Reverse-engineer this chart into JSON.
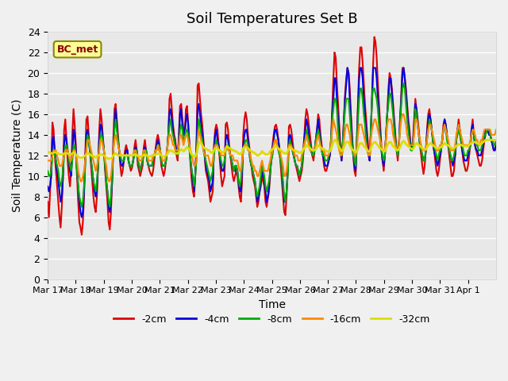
{
  "title": "Soil Temperatures Set B",
  "xlabel": "Time",
  "ylabel": "Soil Temperature (C)",
  "ylim": [
    0,
    24
  ],
  "yticks": [
    0,
    2,
    4,
    6,
    8,
    10,
    12,
    14,
    16,
    18,
    20,
    22,
    24
  ],
  "xlabels": [
    "Mar 17",
    "Mar 18",
    "Mar 19",
    "Mar 20",
    "Mar 21",
    "Mar 22",
    "Mar 23",
    "Mar 24",
    "Mar 25",
    "Mar 26",
    "Mar 27",
    "Mar 28",
    "Mar 29",
    "Mar 30",
    "Mar 31",
    "Apr 1"
  ],
  "legend_label": "BC_met",
  "series_labels": [
    "-2cm",
    "-4cm",
    "-8cm",
    "-16cm",
    "-32cm"
  ],
  "series_colors": [
    "#dd0000",
    "#0000dd",
    "#00aa00",
    "#ff8800",
    "#dddd00"
  ],
  "background_color": "#e8e8e8",
  "grid_color": "#ffffff",
  "title_fontsize": 13,
  "axis_fontsize": 10,
  "tick_fontsize": 9,
  "cm2_data": [
    7.5,
    6.0,
    8.5,
    11.0,
    15.2,
    14.5,
    12.0,
    10.5,
    9.0,
    7.5,
    6.0,
    5.0,
    7.0,
    10.0,
    14.5,
    15.5,
    13.5,
    11.5,
    10.0,
    9.0,
    10.5,
    14.0,
    16.5,
    15.0,
    13.0,
    10.0,
    7.5,
    5.5,
    5.0,
    4.3,
    5.5,
    8.0,
    12.0,
    15.5,
    15.8,
    14.0,
    12.5,
    11.0,
    9.5,
    8.0,
    7.0,
    6.5,
    8.0,
    11.0,
    14.5,
    16.5,
    15.5,
    14.0,
    12.5,
    10.5,
    9.0,
    7.5,
    5.5,
    4.8,
    6.5,
    9.5,
    13.5,
    16.5,
    17.0,
    15.5,
    14.0,
    12.5,
    11.0,
    10.0,
    10.5,
    11.5,
    12.5,
    13.0,
    12.5,
    11.5,
    11.0,
    10.5,
    10.8,
    11.5,
    12.8,
    13.5,
    12.5,
    11.0,
    10.5,
    10.0,
    10.5,
    11.0,
    12.8,
    13.5,
    12.5,
    11.5,
    11.0,
    10.5,
    10.2,
    10.0,
    10.5,
    11.5,
    12.5,
    13.5,
    14.0,
    13.5,
    12.5,
    11.0,
    10.5,
    10.0,
    10.5,
    11.5,
    12.5,
    14.0,
    17.5,
    18.0,
    16.5,
    15.0,
    14.0,
    13.5,
    12.0,
    11.5,
    14.0,
    16.8,
    17.0,
    15.5,
    14.5,
    14.0,
    16.5,
    16.8,
    15.0,
    13.0,
    11.0,
    9.5,
    8.5,
    8.0,
    10.0,
    13.0,
    18.8,
    19.0,
    17.5,
    16.0,
    15.0,
    13.5,
    12.0,
    10.5,
    10.0,
    9.5,
    8.5,
    7.5,
    8.0,
    8.5,
    13.0,
    14.5,
    15.0,
    14.5,
    13.0,
    11.5,
    10.0,
    9.0,
    9.5,
    10.0,
    15.0,
    15.2,
    14.5,
    13.0,
    12.0,
    11.0,
    10.0,
    9.5,
    10.0,
    10.5,
    10.0,
    9.0,
    8.0,
    7.5,
    9.5,
    14.0,
    15.5,
    16.2,
    15.5,
    14.0,
    13.0,
    12.0,
    11.0,
    10.0,
    9.5,
    9.0,
    8.0,
    7.0,
    7.5,
    8.5,
    9.0,
    10.0,
    9.5,
    9.0,
    7.5,
    7.0,
    7.8,
    8.5,
    10.0,
    12.0,
    13.0,
    14.0,
    14.8,
    15.0,
    14.5,
    13.5,
    12.5,
    11.0,
    9.5,
    8.0,
    6.5,
    6.2,
    8.0,
    10.5,
    14.8,
    15.0,
    14.5,
    13.5,
    12.5,
    11.5,
    11.0,
    10.5,
    10.0,
    9.5,
    10.0,
    10.5,
    11.5,
    13.5,
    15.5,
    16.5,
    16.0,
    15.0,
    14.0,
    13.0,
    12.0,
    11.5,
    12.5,
    13.5,
    14.5,
    16.0,
    15.5,
    14.0,
    13.0,
    12.0,
    11.0,
    10.5,
    10.5,
    11.0,
    11.5,
    12.0,
    13.5,
    16.5,
    19.5,
    22.0,
    21.5,
    19.0,
    17.0,
    15.0,
    13.0,
    11.5,
    13.0,
    15.5,
    18.0,
    19.5,
    20.5,
    20.0,
    18.5,
    16.0,
    14.0,
    12.0,
    10.5,
    10.0,
    13.5,
    17.0,
    20.5,
    22.5,
    22.5,
    21.0,
    19.0,
    17.0,
    15.5,
    14.0,
    12.5,
    11.5,
    14.0,
    17.5,
    21.0,
    23.5,
    23.0,
    21.5,
    19.0,
    17.0,
    15.0,
    13.0,
    11.5,
    10.5,
    12.0,
    14.0,
    16.0,
    18.5,
    20.0,
    19.5,
    18.5,
    17.0,
    15.5,
    14.0,
    12.5,
    11.5,
    13.0,
    15.5,
    18.0,
    20.5,
    20.5,
    19.5,
    18.5,
    17.0,
    15.5,
    14.5,
    13.0,
    12.5,
    13.5,
    15.5,
    17.5,
    16.5,
    15.5,
    14.5,
    13.0,
    12.0,
    11.0,
    10.2,
    11.0,
    12.5,
    14.5,
    16.0,
    16.5,
    15.5,
    14.5,
    13.5,
    12.5,
    11.5,
    10.5,
    10.0,
    10.5,
    11.5,
    12.5,
    13.5,
    15.0,
    15.5,
    15.0,
    14.0,
    13.0,
    12.0,
    11.0,
    10.0,
    10.0,
    10.5,
    12.0,
    13.5,
    14.5,
    15.5,
    14.5,
    13.5,
    12.5,
    11.5,
    11.0,
    10.5,
    10.5,
    11.0,
    12.0,
    13.0,
    14.5,
    15.5,
    14.0,
    13.0,
    12.5,
    12.0,
    11.5,
    11.0,
    11.0,
    11.5,
    12.5,
    13.5,
    14.0,
    14.5,
    14.5,
    14.0,
    14.0,
    13.5,
    13.0,
    12.5,
    12.5,
    13.0
  ],
  "cm4_data": [
    9.0,
    8.5,
    9.0,
    10.0,
    13.5,
    13.8,
    12.5,
    11.5,
    10.5,
    9.5,
    8.5,
    7.5,
    8.0,
    10.0,
    13.0,
    14.0,
    13.5,
    12.5,
    11.5,
    10.5,
    10.0,
    12.0,
    14.5,
    14.0,
    12.5,
    10.5,
    9.0,
    7.5,
    6.5,
    6.0,
    6.5,
    8.5,
    11.5,
    14.0,
    14.5,
    13.5,
    12.5,
    11.5,
    10.5,
    9.5,
    8.5,
    8.0,
    9.0,
    11.0,
    13.5,
    15.0,
    14.8,
    13.5,
    12.5,
    11.0,
    9.5,
    8.5,
    7.0,
    6.5,
    7.5,
    9.5,
    12.5,
    15.0,
    16.5,
    15.0,
    13.5,
    12.5,
    11.5,
    11.0,
    11.0,
    11.5,
    12.0,
    12.5,
    12.5,
    11.5,
    11.0,
    11.0,
    11.0,
    11.5,
    12.5,
    12.8,
    12.5,
    11.5,
    11.0,
    10.5,
    11.0,
    11.5,
    12.5,
    12.8,
    12.5,
    11.5,
    11.0,
    11.0,
    11.0,
    11.0,
    11.5,
    12.0,
    12.5,
    13.0,
    13.5,
    13.0,
    12.5,
    11.5,
    11.0,
    11.0,
    11.0,
    11.5,
    12.5,
    14.0,
    16.3,
    16.5,
    15.5,
    14.5,
    13.5,
    13.0,
    12.5,
    12.0,
    13.5,
    16.0,
    16.5,
    15.0,
    14.0,
    14.0,
    15.5,
    16.0,
    15.0,
    13.0,
    11.5,
    10.5,
    9.5,
    8.5,
    10.0,
    12.5,
    16.5,
    17.0,
    16.0,
    15.0,
    14.0,
    13.0,
    12.0,
    11.0,
    10.5,
    10.0,
    9.5,
    8.5,
    9.0,
    9.5,
    12.5,
    14.0,
    14.5,
    13.5,
    13.0,
    12.0,
    11.0,
    10.5,
    10.5,
    11.0,
    13.5,
    14.0,
    13.5,
    12.5,
    12.0,
    11.5,
    11.0,
    10.5,
    10.5,
    11.0,
    10.5,
    9.5,
    8.5,
    8.5,
    10.5,
    13.0,
    14.0,
    14.5,
    14.5,
    13.5,
    12.5,
    11.5,
    11.0,
    10.5,
    10.0,
    9.5,
    8.5,
    7.5,
    8.0,
    8.5,
    9.5,
    10.5,
    10.0,
    9.5,
    8.5,
    7.5,
    8.0,
    9.0,
    10.5,
    11.5,
    12.5,
    13.5,
    14.5,
    14.5,
    14.0,
    13.5,
    12.5,
    11.5,
    10.5,
    9.0,
    7.5,
    7.5,
    8.5,
    10.5,
    13.8,
    14.0,
    13.5,
    12.5,
    12.0,
    11.5,
    11.0,
    11.0,
    10.5,
    10.0,
    10.5,
    11.0,
    12.0,
    13.5,
    14.5,
    15.5,
    15.0,
    14.0,
    13.0,
    12.5,
    12.0,
    12.0,
    12.5,
    13.5,
    14.5,
    15.5,
    14.5,
    13.5,
    12.5,
    12.0,
    11.5,
    11.0,
    11.0,
    11.0,
    11.5,
    12.0,
    13.0,
    16.0,
    17.5,
    19.5,
    19.5,
    17.5,
    15.5,
    14.0,
    12.5,
    11.5,
    13.0,
    15.5,
    17.5,
    19.0,
    20.5,
    20.0,
    17.5,
    15.5,
    13.5,
    12.0,
    11.0,
    10.5,
    13.0,
    16.5,
    19.5,
    20.5,
    20.5,
    19.5,
    17.5,
    16.0,
    14.5,
    13.0,
    12.0,
    11.5,
    14.5,
    17.5,
    20.5,
    20.5,
    20.5,
    19.5,
    17.5,
    15.5,
    14.0,
    12.5,
    11.5,
    11.0,
    12.0,
    14.0,
    16.0,
    17.5,
    19.5,
    19.5,
    18.0,
    16.5,
    15.0,
    13.5,
    12.5,
    12.0,
    13.0,
    15.5,
    17.5,
    20.0,
    20.5,
    19.5,
    18.0,
    16.5,
    15.0,
    14.0,
    13.0,
    12.5,
    13.0,
    15.0,
    17.0,
    16.5,
    15.0,
    14.0,
    13.0,
    12.5,
    12.0,
    11.5,
    11.5,
    12.5,
    14.0,
    15.5,
    16.0,
    15.5,
    14.5,
    13.5,
    12.5,
    12.0,
    11.5,
    11.0,
    11.5,
    12.0,
    12.5,
    13.5,
    14.5,
    15.5,
    15.0,
    14.0,
    13.0,
    12.5,
    12.0,
    11.5,
    11.0,
    11.5,
    12.0,
    13.5,
    14.5,
    15.0,
    14.5,
    13.5,
    12.5,
    12.0,
    11.5,
    11.5,
    11.5,
    12.0,
    12.5,
    13.0,
    14.5,
    15.0,
    14.0,
    13.0,
    12.5,
    12.5,
    12.0,
    12.0,
    12.0,
    12.5,
    13.0,
    14.0,
    14.5,
    14.5,
    14.5,
    14.0,
    14.0,
    13.5,
    13.0,
    12.5,
    12.5,
    13.0
  ],
  "cm8_data": [
    10.5,
    10.0,
    10.0,
    10.5,
    12.0,
    12.5,
    12.0,
    11.5,
    11.0,
    10.5,
    9.5,
    9.0,
    9.5,
    10.5,
    12.0,
    13.0,
    13.0,
    12.5,
    11.5,
    11.0,
    10.5,
    11.5,
    13.0,
    13.0,
    12.0,
    10.5,
    9.0,
    8.0,
    7.5,
    7.0,
    7.5,
    9.0,
    11.0,
    13.0,
    14.0,
    13.5,
    12.5,
    11.5,
    10.5,
    9.5,
    9.0,
    8.5,
    9.5,
    11.0,
    12.5,
    14.0,
    14.0,
    13.5,
    12.5,
    11.0,
    9.5,
    8.5,
    7.5,
    7.0,
    8.0,
    10.0,
    12.5,
    14.5,
    15.5,
    14.5,
    13.5,
    12.5,
    12.0,
    11.5,
    11.5,
    11.5,
    12.0,
    12.0,
    12.0,
    11.5,
    11.0,
    11.0,
    11.0,
    11.5,
    12.0,
    12.5,
    12.5,
    11.5,
    11.0,
    10.5,
    11.0,
    11.5,
    12.0,
    12.5,
    12.5,
    11.5,
    11.0,
    11.0,
    11.0,
    11.0,
    11.5,
    12.0,
    12.5,
    12.5,
    13.0,
    13.0,
    12.5,
    11.5,
    11.0,
    11.0,
    11.0,
    11.5,
    12.5,
    14.0,
    15.0,
    15.5,
    14.5,
    14.0,
    13.5,
    12.5,
    12.5,
    12.0,
    13.0,
    14.5,
    15.0,
    14.5,
    13.5,
    13.5,
    14.5,
    14.5,
    14.0,
    12.5,
    11.5,
    10.5,
    10.0,
    9.0,
    10.0,
    11.5,
    14.0,
    15.5,
    15.0,
    14.0,
    13.5,
    12.5,
    12.0,
    11.5,
    11.0,
    10.5,
    10.0,
    9.5,
    10.0,
    10.5,
    12.0,
    13.0,
    13.5,
    13.0,
    12.5,
    12.0,
    11.5,
    11.0,
    11.0,
    11.5,
    12.5,
    13.0,
    13.0,
    12.5,
    12.0,
    11.5,
    11.0,
    10.5,
    11.0,
    11.0,
    10.5,
    9.5,
    9.0,
    9.5,
    11.0,
    12.5,
    13.0,
    13.5,
    13.5,
    13.0,
    12.5,
    11.5,
    11.0,
    10.5,
    10.0,
    9.5,
    8.5,
    8.0,
    8.5,
    9.0,
    10.0,
    11.0,
    10.5,
    10.0,
    9.0,
    8.5,
    9.0,
    9.5,
    10.5,
    11.5,
    12.0,
    13.0,
    13.5,
    13.5,
    13.0,
    12.5,
    12.0,
    11.5,
    10.5,
    9.5,
    8.0,
    7.5,
    8.5,
    10.0,
    13.0,
    13.5,
    13.0,
    12.5,
    12.0,
    11.5,
    11.0,
    11.0,
    10.5,
    10.0,
    10.5,
    11.0,
    12.0,
    13.0,
    13.5,
    14.5,
    14.0,
    13.5,
    13.0,
    12.5,
    12.0,
    12.0,
    12.5,
    13.5,
    14.0,
    14.5,
    14.0,
    13.0,
    12.5,
    12.0,
    12.0,
    11.5,
    11.5,
    11.5,
    12.0,
    12.5,
    13.5,
    15.5,
    16.5,
    17.5,
    17.5,
    16.5,
    14.5,
    13.5,
    12.5,
    12.0,
    13.0,
    15.0,
    16.5,
    17.5,
    17.5,
    17.5,
    16.0,
    14.5,
    13.0,
    12.0,
    11.5,
    11.0,
    13.0,
    15.5,
    17.5,
    18.5,
    18.5,
    17.5,
    16.0,
    15.0,
    13.5,
    12.5,
    12.0,
    12.0,
    14.5,
    17.5,
    18.5,
    18.5,
    18.0,
    17.5,
    16.5,
    15.0,
    13.5,
    12.5,
    12.0,
    11.5,
    12.0,
    14.0,
    16.0,
    17.0,
    18.0,
    18.0,
    17.0,
    16.0,
    14.5,
    13.5,
    12.5,
    12.0,
    13.0,
    15.0,
    17.0,
    18.5,
    19.0,
    18.5,
    17.0,
    15.5,
    14.5,
    13.5,
    12.5,
    12.5,
    13.0,
    14.5,
    16.5,
    16.0,
    15.0,
    14.0,
    13.0,
    12.5,
    12.0,
    11.5,
    11.5,
    12.5,
    13.5,
    14.5,
    15.5,
    15.0,
    14.5,
    13.5,
    13.0,
    12.5,
    12.0,
    11.5,
    12.0,
    12.5,
    12.5,
    13.5,
    14.5,
    15.0,
    14.5,
    13.5,
    13.0,
    12.5,
    12.0,
    11.5,
    11.5,
    12.0,
    12.5,
    13.5,
    14.0,
    14.5,
    14.0,
    13.5,
    13.0,
    12.5,
    12.0,
    12.0,
    12.0,
    12.5,
    12.5,
    13.0,
    14.0,
    14.5,
    14.0,
    13.5,
    13.0,
    13.0,
    12.5,
    12.5,
    12.5,
    13.0,
    13.5,
    14.0,
    14.0,
    14.5,
    14.5,
    14.5,
    14.0,
    13.5,
    13.5,
    13.0,
    13.0,
    13.5
  ],
  "cm16_data": [
    11.5,
    11.5,
    11.5,
    11.5,
    12.0,
    12.5,
    12.5,
    12.5,
    12.0,
    11.5,
    11.0,
    11.0,
    11.0,
    11.5,
    12.0,
    12.5,
    12.5,
    12.5,
    12.0,
    11.5,
    11.5,
    12.0,
    12.5,
    12.5,
    12.0,
    11.5,
    10.5,
    10.0,
    9.5,
    9.5,
    10.0,
    10.5,
    11.5,
    12.5,
    13.5,
    13.5,
    13.0,
    12.5,
    12.0,
    11.5,
    11.0,
    10.5,
    11.0,
    11.5,
    12.5,
    13.5,
    13.5,
    13.0,
    12.5,
    11.5,
    11.0,
    10.0,
    9.5,
    9.5,
    10.0,
    11.0,
    12.5,
    13.5,
    14.0,
    13.5,
    13.0,
    12.5,
    12.0,
    12.0,
    12.0,
    12.0,
    12.0,
    12.0,
    12.0,
    12.0,
    12.0,
    12.0,
    12.0,
    12.0,
    12.5,
    12.5,
    12.0,
    12.0,
    11.5,
    11.5,
    11.5,
    12.0,
    12.5,
    12.5,
    12.0,
    12.0,
    11.5,
    11.5,
    11.5,
    11.5,
    12.0,
    12.0,
    12.5,
    12.5,
    13.0,
    12.5,
    12.5,
    12.0,
    11.5,
    11.5,
    11.5,
    12.0,
    12.5,
    13.5,
    14.0,
    14.0,
    13.5,
    13.0,
    13.0,
    12.5,
    12.5,
    12.5,
    13.0,
    14.0,
    14.0,
    13.5,
    13.0,
    13.5,
    14.0,
    14.0,
    13.5,
    13.0,
    12.5,
    12.0,
    11.5,
    11.0,
    11.0,
    11.5,
    13.5,
    14.5,
    14.0,
    13.5,
    13.0,
    12.5,
    12.0,
    12.0,
    12.0,
    12.0,
    11.5,
    11.0,
    11.0,
    11.5,
    12.5,
    13.0,
    13.0,
    13.0,
    12.5,
    12.5,
    12.0,
    12.0,
    12.0,
    12.0,
    12.5,
    13.0,
    12.5,
    12.5,
    12.0,
    12.0,
    12.0,
    11.5,
    11.5,
    11.5,
    11.5,
    11.0,
    10.5,
    10.5,
    11.5,
    12.5,
    13.0,
    13.0,
    13.0,
    12.5,
    12.5,
    12.0,
    11.5,
    11.0,
    11.0,
    10.5,
    10.5,
    10.0,
    10.0,
    10.5,
    11.0,
    11.5,
    11.0,
    10.5,
    10.5,
    10.5,
    10.5,
    11.0,
    11.5,
    12.0,
    12.5,
    13.0,
    13.5,
    13.5,
    13.0,
    12.5,
    12.5,
    12.0,
    11.5,
    11.0,
    10.0,
    10.0,
    10.5,
    11.5,
    13.0,
    13.0,
    13.0,
    12.5,
    12.5,
    12.0,
    12.0,
    12.0,
    11.5,
    11.5,
    11.5,
    12.0,
    12.5,
    13.0,
    13.5,
    14.0,
    13.5,
    13.0,
    12.5,
    12.5,
    12.5,
    12.5,
    12.5,
    13.0,
    13.5,
    14.0,
    13.5,
    13.0,
    12.5,
    12.5,
    12.5,
    12.0,
    12.0,
    12.0,
    12.0,
    12.5,
    13.0,
    14.5,
    15.5,
    15.0,
    14.5,
    14.0,
    13.0,
    12.5,
    12.0,
    12.0,
    12.5,
    13.5,
    14.5,
    15.0,
    15.0,
    14.5,
    14.0,
    13.0,
    12.5,
    12.5,
    12.0,
    12.0,
    12.5,
    14.0,
    15.0,
    15.0,
    15.0,
    14.5,
    14.0,
    13.5,
    13.0,
    12.5,
    12.0,
    12.0,
    13.5,
    14.5,
    15.0,
    15.5,
    15.5,
    15.0,
    14.5,
    14.0,
    13.5,
    13.0,
    12.5,
    12.5,
    12.5,
    13.5,
    15.0,
    15.5,
    15.5,
    15.5,
    15.0,
    14.0,
    13.5,
    13.0,
    12.5,
    12.5,
    13.0,
    14.5,
    15.5,
    16.0,
    16.0,
    15.5,
    15.0,
    14.0,
    13.5,
    13.0,
    13.0,
    13.0,
    13.0,
    14.0,
    15.5,
    15.5,
    15.0,
    14.0,
    13.5,
    13.0,
    12.5,
    12.5,
    12.5,
    12.5,
    13.5,
    14.5,
    15.0,
    15.0,
    14.5,
    14.0,
    13.5,
    13.0,
    12.5,
    12.5,
    12.5,
    13.0,
    13.0,
    13.5,
    14.5,
    15.0,
    14.5,
    14.0,
    13.5,
    13.0,
    12.5,
    12.5,
    12.5,
    12.5,
    13.0,
    14.0,
    14.5,
    15.0,
    14.5,
    14.0,
    13.5,
    13.0,
    13.0,
    13.0,
    13.0,
    13.0,
    13.0,
    13.5,
    14.0,
    14.5,
    14.5,
    14.0,
    13.5,
    13.5,
    13.0,
    13.0,
    13.5,
    13.5,
    14.0,
    14.5,
    14.5,
    14.5,
    14.5,
    14.5,
    14.5,
    14.0,
    14.0,
    14.0,
    14.0,
    14.5
  ],
  "cm32_data": [
    12.3,
    12.3,
    12.3,
    12.2,
    12.2,
    12.3,
    12.3,
    12.3,
    12.2,
    12.2,
    12.1,
    12.1,
    12.1,
    12.1,
    12.2,
    12.2,
    12.2,
    12.2,
    12.1,
    12.1,
    12.1,
    12.2,
    12.3,
    12.3,
    12.0,
    12.0,
    11.9,
    11.8,
    11.8,
    11.8,
    11.8,
    11.9,
    12.0,
    12.1,
    12.2,
    12.2,
    12.1,
    12.0,
    12.0,
    11.9,
    11.9,
    11.8,
    11.9,
    12.0,
    12.0,
    12.1,
    12.1,
    12.0,
    12.0,
    11.9,
    11.8,
    11.7,
    11.7,
    11.7,
    11.7,
    11.8,
    12.0,
    12.1,
    12.2,
    12.1,
    12.0,
    12.0,
    12.0,
    12.0,
    12.0,
    12.0,
    12.0,
    12.0,
    12.0,
    12.0,
    12.0,
    12.0,
    12.0,
    12.0,
    12.1,
    12.1,
    12.0,
    12.0,
    11.9,
    11.9,
    11.9,
    12.0,
    12.0,
    12.1,
    12.0,
    12.0,
    11.9,
    11.9,
    11.9,
    12.0,
    12.0,
    12.0,
    12.1,
    12.1,
    12.2,
    12.2,
    12.1,
    12.0,
    11.9,
    11.9,
    11.9,
    12.0,
    12.1,
    12.3,
    12.5,
    12.5,
    12.4,
    12.4,
    12.3,
    12.2,
    12.2,
    12.2,
    12.3,
    12.5,
    12.6,
    12.5,
    12.4,
    12.5,
    12.7,
    12.8,
    12.7,
    12.6,
    12.3,
    12.1,
    12.0,
    11.9,
    11.9,
    12.1,
    12.7,
    13.2,
    13.3,
    13.2,
    13.0,
    12.8,
    12.7,
    12.6,
    12.6,
    12.5,
    12.5,
    12.3,
    12.3,
    12.3,
    12.5,
    12.7,
    12.7,
    12.7,
    12.5,
    12.5,
    12.4,
    12.3,
    12.3,
    12.4,
    12.7,
    12.9,
    12.8,
    12.7,
    12.7,
    12.6,
    12.5,
    12.5,
    12.4,
    12.4,
    12.3,
    12.2,
    12.1,
    12.2,
    12.3,
    12.7,
    12.8,
    12.8,
    12.8,
    12.7,
    12.6,
    12.5,
    12.4,
    12.3,
    12.3,
    12.2,
    12.1,
    12.0,
    12.0,
    12.1,
    12.2,
    12.4,
    12.3,
    12.2,
    12.1,
    12.1,
    12.1,
    12.2,
    12.4,
    12.5,
    12.6,
    12.7,
    12.9,
    12.9,
    12.8,
    12.7,
    12.6,
    12.5,
    12.4,
    12.3,
    12.2,
    12.2,
    12.2,
    12.4,
    12.7,
    12.8,
    12.7,
    12.6,
    12.5,
    12.5,
    12.4,
    12.4,
    12.3,
    12.3,
    12.3,
    12.3,
    12.5,
    12.7,
    12.8,
    13.0,
    12.9,
    12.8,
    12.7,
    12.6,
    12.5,
    12.5,
    12.5,
    12.6,
    12.8,
    13.0,
    12.9,
    12.8,
    12.7,
    12.6,
    12.6,
    12.5,
    12.4,
    12.4,
    12.3,
    12.4,
    12.6,
    13.0,
    13.3,
    13.5,
    13.5,
    13.3,
    13.0,
    12.8,
    12.6,
    12.4,
    12.5,
    12.8,
    13.1,
    13.3,
    13.3,
    13.3,
    13.0,
    12.8,
    12.6,
    12.5,
    12.4,
    12.3,
    12.4,
    12.7,
    13.0,
    13.2,
    13.2,
    13.1,
    12.9,
    12.8,
    12.7,
    12.5,
    12.4,
    12.4,
    12.7,
    13.0,
    13.2,
    13.3,
    13.3,
    13.1,
    13.0,
    12.8,
    12.7,
    12.6,
    12.5,
    12.4,
    12.4,
    12.7,
    13.0,
    13.2,
    13.3,
    13.3,
    13.1,
    12.9,
    12.8,
    12.7,
    12.5,
    12.5,
    12.6,
    12.8,
    13.1,
    13.3,
    13.4,
    13.3,
    13.1,
    13.0,
    12.9,
    12.8,
    12.7,
    12.6,
    12.6,
    12.8,
    13.1,
    13.2,
    13.1,
    13.0,
    12.9,
    12.8,
    12.7,
    12.6,
    12.6,
    12.6,
    12.8,
    13.0,
    13.1,
    13.2,
    13.1,
    13.0,
    12.9,
    12.8,
    12.7,
    12.7,
    12.7,
    12.8,
    12.8,
    12.9,
    13.1,
    13.2,
    13.1,
    13.0,
    13.0,
    12.9,
    12.8,
    12.7,
    12.7,
    12.7,
    12.8,
    12.9,
    13.0,
    13.1,
    13.1,
    13.0,
    13.0,
    12.9,
    12.9,
    12.9,
    12.9,
    12.9,
    13.0,
    13.1,
    13.2,
    13.3,
    13.3,
    13.3,
    13.2,
    13.2,
    13.1,
    13.1,
    13.1,
    13.2,
    13.3,
    13.4,
    13.5,
    13.5,
    13.5,
    13.5,
    13.5,
    13.5,
    13.5,
    13.5,
    13.5,
    13.5
  ]
}
